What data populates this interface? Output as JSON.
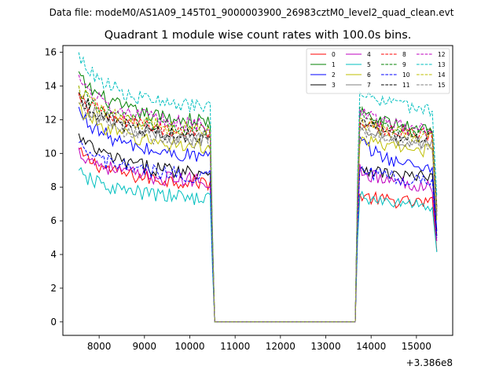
{
  "chart_data": {
    "type": "line",
    "suptitle": "Data file: modeM0/AS1A09_145T01_9000003900_26983cztM0_level2_quad_clean.evt",
    "title": "Quadrant 1 module wise count rates with 100.0s bins.",
    "xlabel": "",
    "ylabel": "",
    "x_offset_label": "+3.386e8",
    "xlim": [
      7200,
      15800
    ],
    "ylim": [
      -0.8,
      16.4
    ],
    "xticks": [
      8000,
      9000,
      10000,
      11000,
      12000,
      13000,
      14000,
      15000
    ],
    "yticks": [
      0,
      2,
      4,
      6,
      8,
      10,
      12,
      14,
      16
    ],
    "legend_position": "top-right",
    "segments": [
      {
        "start": 7550,
        "end": 10450,
        "kind": "active"
      },
      {
        "start": 10550,
        "end": 13650,
        "kind": "gap"
      },
      {
        "start": 13750,
        "end": 15450,
        "kind": "active"
      }
    ],
    "series": [
      {
        "name": "0",
        "color": "#ff0000",
        "dash": "solid",
        "level1": 8.2,
        "level2": 7.0,
        "slope1": 0.6,
        "slope2": 0.2
      },
      {
        "name": "1",
        "color": "#008000",
        "dash": "solid",
        "level1": 11.8,
        "level2": 11.4,
        "slope1": 0.9,
        "slope2": 0.4
      },
      {
        "name": "2",
        "color": "#0000ff",
        "dash": "solid",
        "level1": 9.7,
        "level2": 9.0,
        "slope1": 0.9,
        "slope2": 0.7
      },
      {
        "name": "3",
        "color": "#000000",
        "dash": "solid",
        "level1": 8.8,
        "level2": 8.5,
        "slope1": 0.7,
        "slope2": 0.3
      },
      {
        "name": "4",
        "color": "#bf00bf",
        "dash": "solid",
        "level1": 8.3,
        "level2": 8.0,
        "slope1": 0.6,
        "slope2": 0.4
      },
      {
        "name": "5",
        "color": "#00bfbf",
        "dash": "solid",
        "level1": 7.3,
        "level2": 6.9,
        "slope1": 0.5,
        "slope2": 0.2
      },
      {
        "name": "6",
        "color": "#bfbf00",
        "dash": "solid",
        "level1": 10.3,
        "level2": 10.1,
        "slope1": 0.8,
        "slope2": 0.3
      },
      {
        "name": "7",
        "color": "#808080",
        "dash": "solid",
        "level1": 10.8,
        "level2": 10.5,
        "slope1": 0.8,
        "slope2": 0.4
      },
      {
        "name": "8",
        "color": "#ff0000",
        "dash": "dashed",
        "level1": 11.2,
        "level2": 11.0,
        "slope1": 0.7,
        "slope2": 0.4
      },
      {
        "name": "9",
        "color": "#008000",
        "dash": "dashed",
        "level1": 11.3,
        "level2": 11.2,
        "slope1": 0.8,
        "slope2": 0.5
      },
      {
        "name": "10",
        "color": "#0000ff",
        "dash": "dashed",
        "level1": 8.6,
        "level2": 8.3,
        "slope1": 0.6,
        "slope2": 0.3
      },
      {
        "name": "11",
        "color": "#000000",
        "dash": "dashed",
        "level1": 10.9,
        "level2": 10.8,
        "slope1": 0.8,
        "slope2": 0.5
      },
      {
        "name": "12",
        "color": "#bf00bf",
        "dash": "dashed",
        "level1": 11.6,
        "level2": 11.3,
        "slope1": 0.9,
        "slope2": 0.5
      },
      {
        "name": "13",
        "color": "#00bfbf",
        "dash": "dashed",
        "level1": 12.6,
        "level2": 12.4,
        "slope1": 1.0,
        "slope2": 0.6
      },
      {
        "name": "14",
        "color": "#bfbf00",
        "dash": "dashed",
        "level1": 11.3,
        "level2": 10.9,
        "slope1": 0.8,
        "slope2": 0.4
      },
      {
        "name": "15",
        "color": "#808080",
        "dash": "dashed",
        "level1": 10.6,
        "level2": 10.5,
        "slope1": 0.7,
        "slope2": 0.4
      }
    ]
  }
}
